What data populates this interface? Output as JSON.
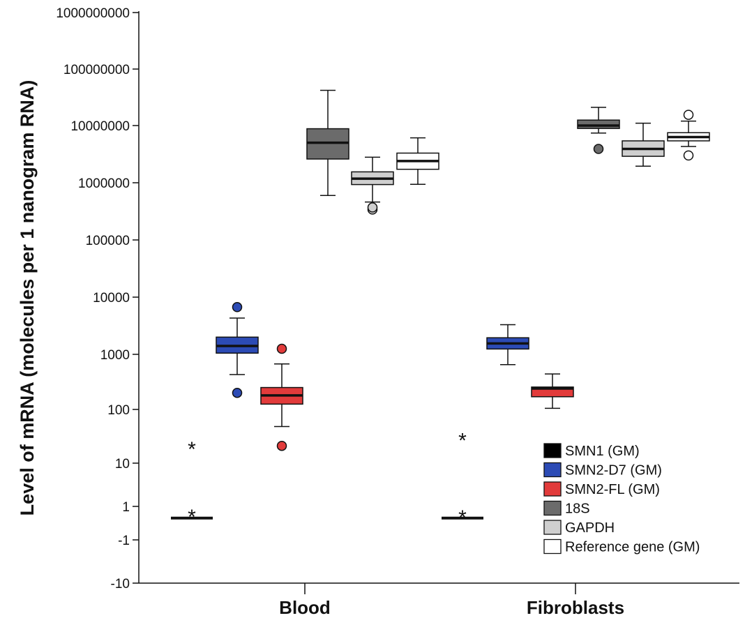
{
  "chart_data": {
    "type": "boxplot",
    "ylabel": "Level of mRNA (molecules per 1 nanogram RNA)",
    "xlabel": "",
    "y_scale": "log-like (custom tick spacing)",
    "y_ticks": [
      "-10",
      "-1",
      "1",
      "10",
      "100",
      "1000",
      "10000",
      "100000",
      "1000000",
      "10000000",
      "100000000",
      "1000000000"
    ],
    "categories": [
      "Blood",
      "Fibroblasts"
    ],
    "legend_position": "bottom-right",
    "series": [
      {
        "name": "SMN1 (GM)",
        "color": "#000000"
      },
      {
        "name": "SMN2-D7 (GM)",
        "color": "#2c4bb5"
      },
      {
        "name": "SMN2-FL (GM)",
        "color": "#e23b3b"
      },
      {
        "name": "18S",
        "color": "#6b6b6b"
      },
      {
        "name": "GAPDH",
        "color": "#cfcfcf"
      },
      {
        "name": "Reference gene (GM)",
        "color": "#ffffff"
      }
    ],
    "boxes": [
      {
        "category": "Blood",
        "series": "SMN1 (GM)",
        "whisker_low": 0.3,
        "q1": 0.3,
        "median": 0.3,
        "q3": 0.3,
        "whisker_high": 0.3,
        "outliers": [
          {
            "value": 0.5,
            "marker": "*"
          },
          {
            "value": 20,
            "marker": "*"
          }
        ]
      },
      {
        "category": "Blood",
        "series": "SMN2-D7 (GM)",
        "whisker_low": 430,
        "q1": 1050,
        "median": 1400,
        "q3": 2000,
        "whisker_high": 4300,
        "outliers": [
          {
            "value": 200,
            "marker": "o"
          },
          {
            "value": 6700,
            "marker": "o"
          }
        ]
      },
      {
        "category": "Blood",
        "series": "SMN2-FL (GM)",
        "whisker_low": 48,
        "q1": 125,
        "median": 180,
        "q3": 250,
        "whisker_high": 670,
        "outliers": [
          {
            "value": 21,
            "marker": "o"
          },
          {
            "value": 1250,
            "marker": "o"
          }
        ]
      },
      {
        "category": "Blood",
        "series": "18S",
        "whisker_low": 600000,
        "q1": 2600000,
        "median": 5000000,
        "q3": 8800000,
        "whisker_high": 42000000,
        "outliers": []
      },
      {
        "category": "Blood",
        "series": "GAPDH",
        "whisker_low": 460000,
        "q1": 930000,
        "median": 1180000,
        "q3": 1550000,
        "whisker_high": 2800000,
        "outliers": [
          {
            "value": 340000,
            "marker": "o"
          },
          {
            "value": 370000,
            "marker": "o"
          }
        ]
      },
      {
        "category": "Blood",
        "series": "Reference gene (GM)",
        "whisker_low": 940000,
        "q1": 1720000,
        "median": 2400000,
        "q3": 3300000,
        "whisker_high": 6100000,
        "outliers": []
      },
      {
        "category": "Fibroblasts",
        "series": "SMN1 (GM)",
        "whisker_low": 0.3,
        "q1": 0.3,
        "median": 0.3,
        "q3": 0.3,
        "whisker_high": 0.3,
        "outliers": [
          {
            "value": 0.45,
            "marker": "*"
          },
          {
            "value": 29,
            "marker": "*"
          }
        ]
      },
      {
        "category": "Fibroblasts",
        "series": "SMN2-D7 (GM)",
        "whisker_low": 650,
        "q1": 1240,
        "median": 1550,
        "q3": 1950,
        "whisker_high": 3300,
        "outliers": []
      },
      {
        "category": "Fibroblasts",
        "series": "SMN2-FL (GM)",
        "whisker_low": 105,
        "q1": 170,
        "median": 240,
        "q3": 255,
        "whisker_high": 440,
        "outliers": []
      },
      {
        "category": "Fibroblasts",
        "series": "18S",
        "whisker_low": 7400000,
        "q1": 8900000,
        "median": 10000000,
        "q3": 12500000,
        "whisker_high": 21000000,
        "outliers": [
          {
            "value": 3900000,
            "marker": "o"
          }
        ]
      },
      {
        "category": "Fibroblasts",
        "series": "GAPDH",
        "whisker_low": 1950000,
        "q1": 2900000,
        "median": 3900000,
        "q3": 5400000,
        "whisker_high": 11000000,
        "outliers": []
      },
      {
        "category": "Fibroblasts",
        "series": "Reference gene (GM)",
        "whisker_low": 4300000,
        "q1": 5400000,
        "median": 6300000,
        "q3": 7500000,
        "whisker_high": 12000000,
        "outliers": [
          {
            "value": 3000000,
            "marker": "o"
          },
          {
            "value": 15500000,
            "marker": "o"
          }
        ]
      }
    ]
  }
}
